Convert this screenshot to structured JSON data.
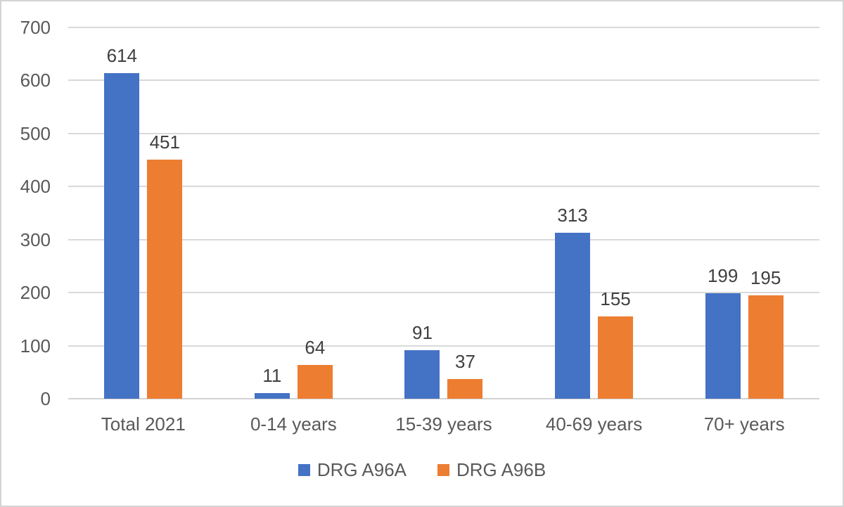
{
  "chart_data": {
    "type": "bar",
    "title": "",
    "xlabel": "",
    "ylabel": "",
    "categories": [
      "Total 2021",
      "0-14 years",
      "15-39 years",
      "40-69 years",
      "70+ years"
    ],
    "series": [
      {
        "name": "DRG A96A",
        "color": "#4472C4",
        "values": [
          614,
          11,
          91,
          313,
          199
        ]
      },
      {
        "name": "DRG A96B",
        "color": "#ED7D31",
        "values": [
          451,
          64,
          37,
          155,
          195
        ]
      }
    ],
    "ylim": [
      0,
      700
    ],
    "yticks": [
      0,
      100,
      200,
      300,
      400,
      500,
      600,
      700
    ],
    "grid": true,
    "data_labels": true,
    "legend_position": "bottom"
  },
  "colors": {
    "gridline": "#D9D9D9",
    "axis_line": "#D2D2D2",
    "axis_text": "#595959",
    "data_label_text": "#404040",
    "legend_text": "#595959",
    "frame_border": "#D4D4D4",
    "background": "#FFFFFF"
  }
}
